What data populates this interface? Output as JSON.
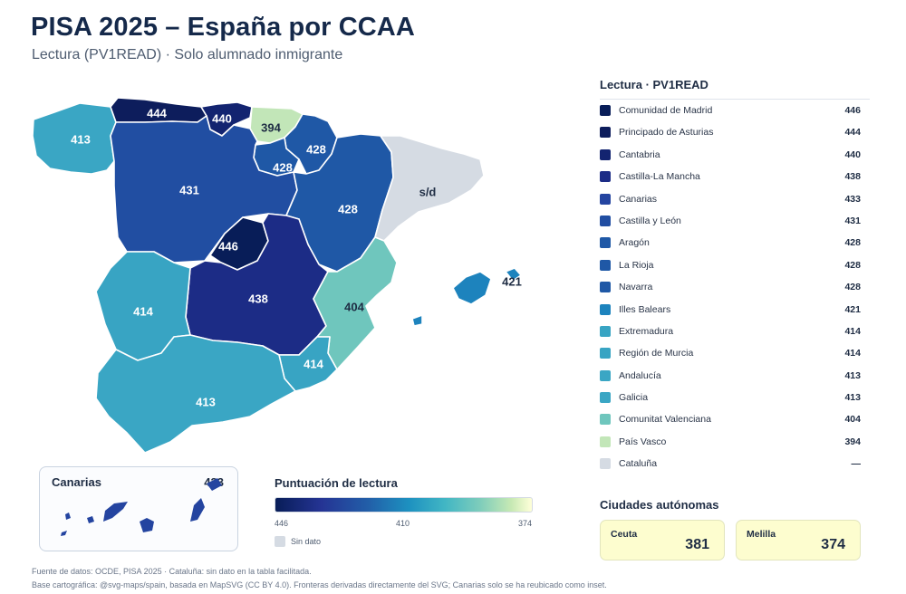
{
  "header": {
    "title": "PISA 2025 – España por CCAA",
    "subtitle": "Lectura (PV1READ) · Solo alumnado inmigrante"
  },
  "map": {
    "regions": [
      {
        "id": "galicia",
        "label": "413",
        "color": "#3aa6c4",
        "text_color": "#ffffff"
      },
      {
        "id": "asturias",
        "label": "444",
        "color": "#0d1d5c",
        "text_color": "#ffffff"
      },
      {
        "id": "cantabria",
        "label": "440",
        "color": "#132470",
        "text_color": "#ffffff"
      },
      {
        "id": "pais-vasco",
        "label": "394",
        "color": "#c2e6b8",
        "text_color": "#1f2d44"
      },
      {
        "id": "navarra",
        "label": "428",
        "color": "#1f58a6",
        "text_color": "#ffffff"
      },
      {
        "id": "la-rioja",
        "label": "428",
        "color": "#1f58a6",
        "text_color": "#ffffff"
      },
      {
        "id": "castilla-y-leon",
        "label": "431",
        "color": "#214ea2",
        "text_color": "#ffffff"
      },
      {
        "id": "aragon",
        "label": "428",
        "color": "#1f58a6",
        "text_color": "#ffffff"
      },
      {
        "id": "cataluna",
        "label": "s/d",
        "color": "#d5dbe3",
        "text_color": "#1f2d44"
      },
      {
        "id": "madrid",
        "label": "446",
        "color": "#081d58",
        "text_color": "#ffffff"
      },
      {
        "id": "castilla-la-mancha",
        "label": "438",
        "color": "#1c2c86",
        "text_color": "#ffffff"
      },
      {
        "id": "extremadura",
        "label": "414",
        "color": "#38a4c3",
        "text_color": "#ffffff"
      },
      {
        "id": "comunitat-valenciana",
        "label": "404",
        "color": "#6fc6bd",
        "text_color": "#1f2d44"
      },
      {
        "id": "region-de-murcia",
        "label": "414",
        "color": "#38a4c3",
        "text_color": "#ffffff"
      },
      {
        "id": "andalucia",
        "label": "413",
        "color": "#3aa6c4",
        "text_color": "#ffffff"
      },
      {
        "id": "illes-balears",
        "label": "421",
        "color": "#1d83bd",
        "text_color": "#1f2d44"
      }
    ],
    "inset": {
      "title": "Canarias",
      "value": "433",
      "color": "#2444a0"
    }
  },
  "scale": {
    "title": "Puntuación de lectura",
    "ticks": [
      "446",
      "410",
      "374"
    ],
    "no_data_label": "Sin dato"
  },
  "legend": {
    "heading": "Lectura · PV1READ",
    "items": [
      {
        "name": "Comunidad de Madrid",
        "value": "446",
        "color": "#081d58"
      },
      {
        "name": "Principado de Asturias",
        "value": "444",
        "color": "#0d1d5c"
      },
      {
        "name": "Cantabria",
        "value": "440",
        "color": "#132470"
      },
      {
        "name": "Castilla-La Mancha",
        "value": "438",
        "color": "#1c2c86"
      },
      {
        "name": "Canarias",
        "value": "433",
        "color": "#2444a0"
      },
      {
        "name": "Castilla y León",
        "value": "431",
        "color": "#214ea2"
      },
      {
        "name": "Aragón",
        "value": "428",
        "color": "#1f58a6"
      },
      {
        "name": "La Rioja",
        "value": "428",
        "color": "#1f58a6"
      },
      {
        "name": "Navarra",
        "value": "428",
        "color": "#1f58a6"
      },
      {
        "name": "Illes Balears",
        "value": "421",
        "color": "#1d83bd"
      },
      {
        "name": "Extremadura",
        "value": "414",
        "color": "#38a4c3"
      },
      {
        "name": "Región de Murcia",
        "value": "414",
        "color": "#38a4c3"
      },
      {
        "name": "Andalucía",
        "value": "413",
        "color": "#3aa6c4"
      },
      {
        "name": "Galicia",
        "value": "413",
        "color": "#3aa6c4"
      },
      {
        "name": "Comunitat Valenciana",
        "value": "404",
        "color": "#6fc6bd"
      },
      {
        "name": "País Vasco",
        "value": "394",
        "color": "#c2e6b8"
      },
      {
        "name": "Cataluña",
        "value": "—",
        "color": "#d5dbe3"
      }
    ]
  },
  "cities": {
    "title": "Ciudades autónomas",
    "items": [
      {
        "name": "Ceuta",
        "value": "381"
      },
      {
        "name": "Melilla",
        "value": "374"
      }
    ]
  },
  "footnotes": {
    "line1": "Fuente de datos: OCDE, PISA 2025 · Cataluña: sin dato en la tabla facilitada.",
    "line2": "Base cartográfica: @svg-maps/spain, basada en MapSVG (CC BY 4.0). Fronteras derivadas directamente del SVG; Canarias solo se ha reubicado como inset."
  }
}
